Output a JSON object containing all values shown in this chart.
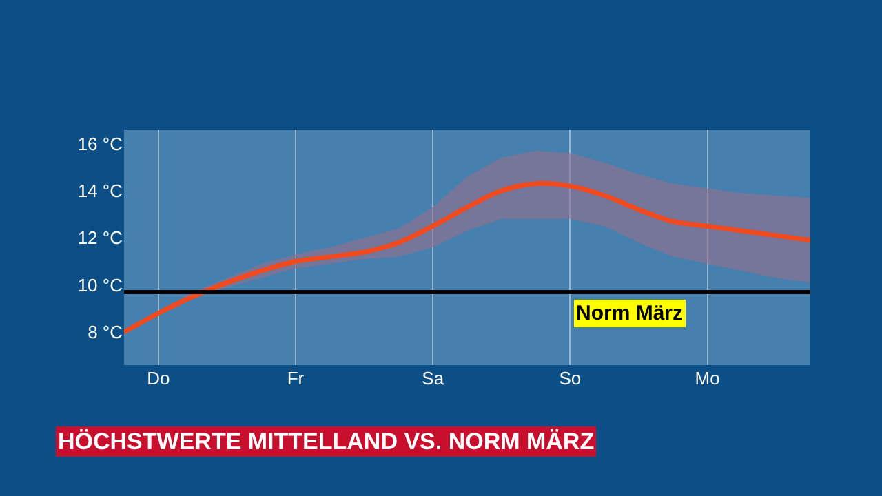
{
  "chart_data": {
    "type": "line",
    "title": "HÖCHSTWERTE MITTELLAND VS. NORM MÄRZ",
    "categories": [
      null,
      "Do",
      null,
      null,
      null,
      "Fr",
      null,
      null,
      null,
      "Sa",
      null,
      null,
      null,
      "So",
      null,
      null,
      null,
      "Mo",
      null,
      null,
      null
    ],
    "series": [
      {
        "color": "#f04a1e",
        "values": [
          8.0,
          8.8,
          9.5,
          10.1,
          10.6,
          11.0,
          11.2,
          11.4,
          11.8,
          12.5,
          13.3,
          14.0,
          14.3,
          14.2,
          13.8,
          13.2,
          12.7,
          12.5,
          12.3,
          12.1,
          11.9
        ],
        "lower": [
          8.0,
          8.7,
          9.4,
          9.9,
          10.3,
          10.7,
          10.9,
          11.1,
          11.2,
          11.6,
          12.3,
          12.8,
          12.8,
          12.8,
          12.5,
          11.8,
          11.2,
          10.9,
          10.6,
          10.3,
          10.1
        ],
        "upper": [
          8.0,
          8.9,
          9.7,
          10.3,
          10.9,
          11.3,
          11.6,
          12.0,
          12.4,
          13.3,
          14.6,
          15.4,
          15.7,
          15.6,
          15.2,
          14.7,
          14.3,
          14.1,
          13.9,
          13.8,
          13.7
        ]
      }
    ],
    "ylim": [
      6.6,
      16.6
    ],
    "yticks": [
      {
        "value": 8,
        "label": "8 °C"
      },
      {
        "value": 10,
        "label": "10 °C"
      },
      {
        "value": 12,
        "label": "12 °C"
      },
      {
        "value": 14,
        "label": "14 °C"
      },
      {
        "value": 16,
        "label": "16 °C"
      }
    ],
    "ref_lines": [
      {
        "axis": "y",
        "value": 9.7,
        "label": "Norm März",
        "color": "#000000"
      }
    ],
    "grid": "x",
    "legend": false,
    "marker": "none",
    "line_style": "solid"
  }
}
